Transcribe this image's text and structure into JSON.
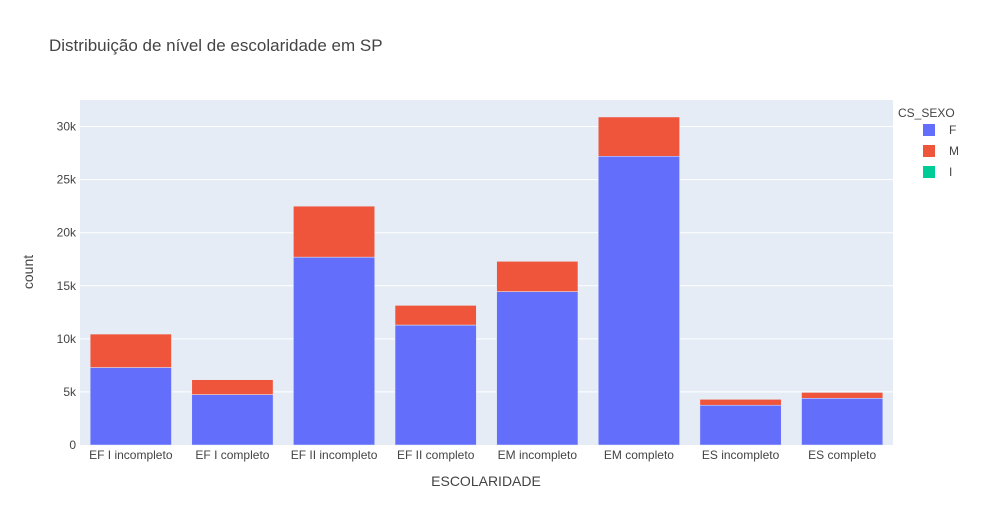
{
  "chart_data": {
    "type": "bar",
    "barmode": "stack",
    "title": "Distribuição de nível de escolaridade em SP",
    "xlabel": "ESCOLARIDADE",
    "ylabel": "count",
    "categories": [
      "EF I incompleto",
      "EF I completo",
      "EF II incompleto",
      "EF II completo",
      "EM incompleto",
      "EM completo",
      "ES incompleto",
      "ES completo"
    ],
    "series": [
      {
        "name": "F",
        "color": "#636efa",
        "values": [
          7300,
          4750,
          17700,
          11300,
          14450,
          27200,
          3750,
          4400
        ]
      },
      {
        "name": "M",
        "color": "#ef553b",
        "values": [
          3150,
          1400,
          4800,
          1850,
          2850,
          3700,
          550,
          550
        ]
      },
      {
        "name": "I",
        "color": "#00cc96",
        "values": [
          0,
          0,
          0,
          0,
          0,
          0,
          0,
          0
        ]
      }
    ],
    "ylim": [
      0,
      32500
    ],
    "yticks": [
      0,
      5000,
      10000,
      15000,
      20000,
      25000,
      30000
    ],
    "ytick_labels": [
      "0",
      "5k",
      "10k",
      "15k",
      "20k",
      "25k",
      "30k"
    ],
    "legend_title": "CS_SEXO",
    "legend_position": "top-right",
    "grid": true,
    "plot_bgcolor": "#e5ecf6"
  }
}
